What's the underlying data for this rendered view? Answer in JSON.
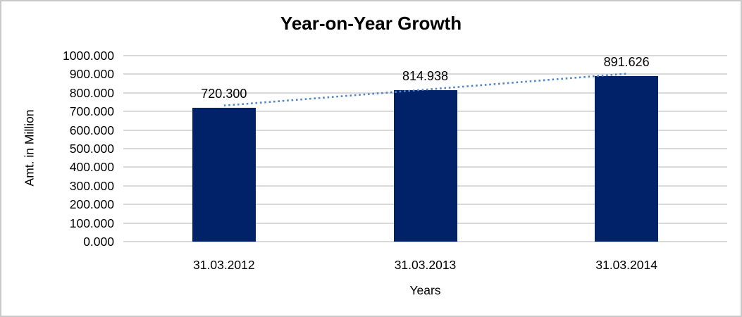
{
  "chart_data": {
    "type": "bar",
    "title": "Year-on-Year Growth",
    "xlabel": "Years",
    "ylabel": "Amt. in Million",
    "categories": [
      "31.03.2012",
      "31.03.2013",
      "31.03.2014"
    ],
    "values": [
      720.3,
      814.938,
      891.626
    ],
    "value_labels": [
      "720.300",
      "814.938",
      "891.626"
    ],
    "y_ticks": [
      "0.000",
      "100.000",
      "200.000",
      "300.000",
      "400.000",
      "500.000",
      "600.000",
      "700.000",
      "800.000",
      "900.000",
      "1000.000"
    ],
    "ylim": [
      0,
      1000
    ],
    "grid": "horizontal-only",
    "legend": "none",
    "bar_color": "#012169",
    "gridline_color": "#dadada",
    "trendline": {
      "type": "linear",
      "style": "dotted",
      "color": "#4f86c6"
    }
  }
}
